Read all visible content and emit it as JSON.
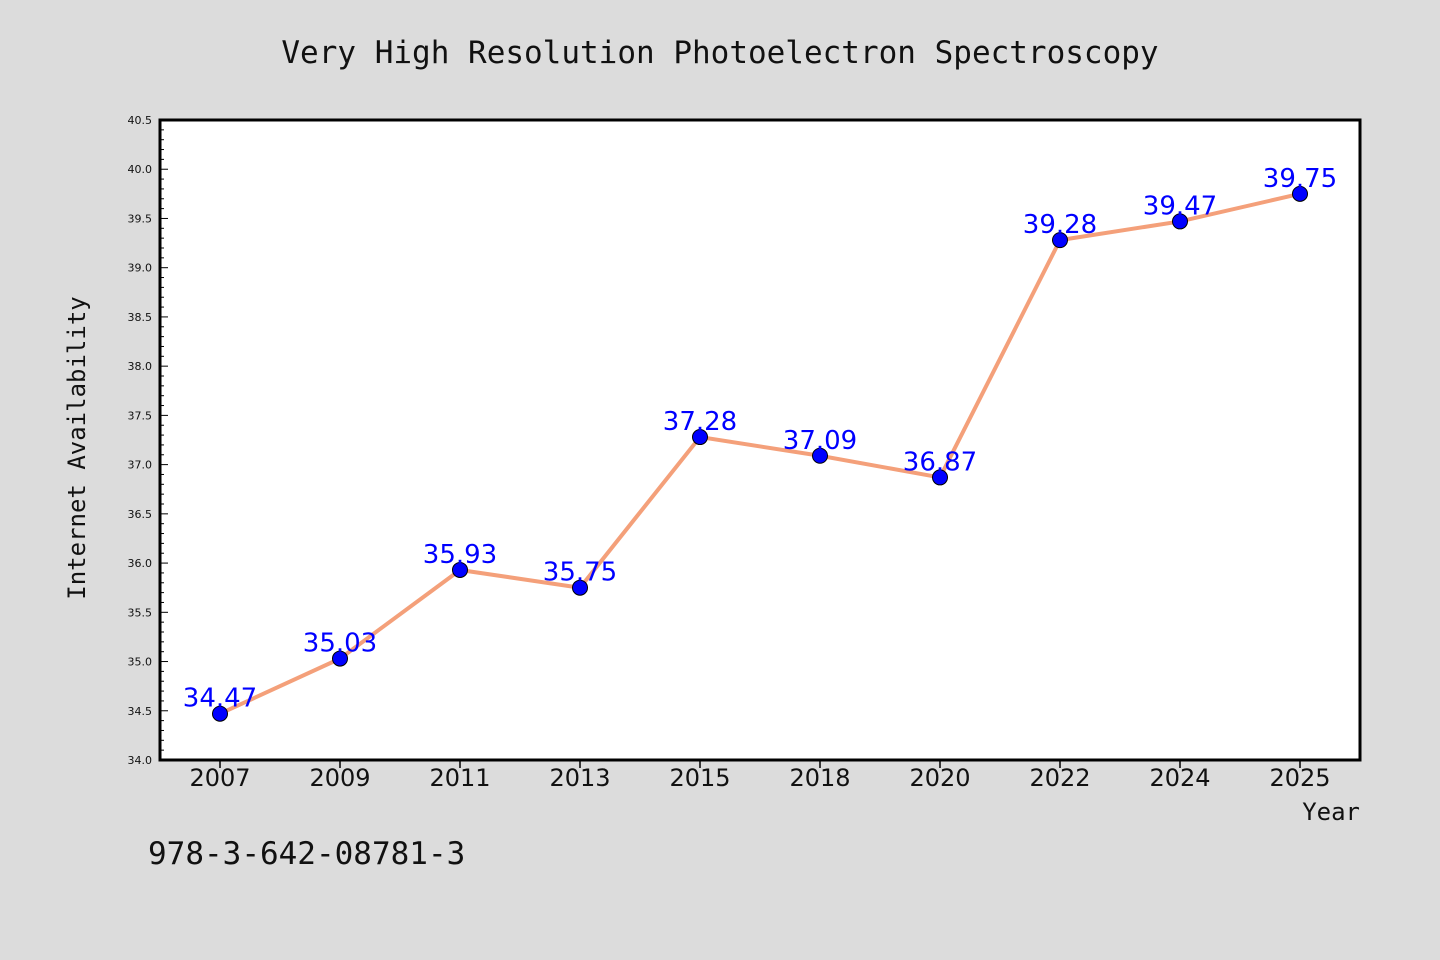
{
  "chart_data": {
    "type": "line",
    "title": "Very High Resolution Photoelectron Spectroscopy",
    "xlabel": "Year",
    "ylabel": "Internet Availability",
    "categories": [
      "2007",
      "2009",
      "2011",
      "2013",
      "2015",
      "2018",
      "2020",
      "2022",
      "2024",
      "2025"
    ],
    "series": [
      {
        "values": [
          34.47,
          35.03,
          35.93,
          35.75,
          37.28,
          37.09,
          36.87,
          39.28,
          39.47,
          39.75
        ],
        "data_labels": [
          "34.47",
          "35.03",
          "35.93",
          "35.75",
          "37.28",
          "37.09",
          "36.87",
          "39.28",
          "39.47",
          "39.75"
        ]
      }
    ],
    "ylim": [
      34.0,
      40.5
    ],
    "yticks": [
      "34.0",
      "34.5",
      "35.0",
      "35.5",
      "36.0",
      "36.5",
      "37.0",
      "37.5",
      "38.0",
      "38.5",
      "39.0",
      "39.5",
      "40.0",
      "40.5"
    ],
    "grid": false,
    "legend": "none",
    "colors": {
      "line": "#f4a07a",
      "marker": "#0000ff",
      "label": "#0000ff",
      "background": "#dcdcdc",
      "plot_bg": "#ffffff"
    }
  },
  "annotation": "978-3-642-08781-3"
}
